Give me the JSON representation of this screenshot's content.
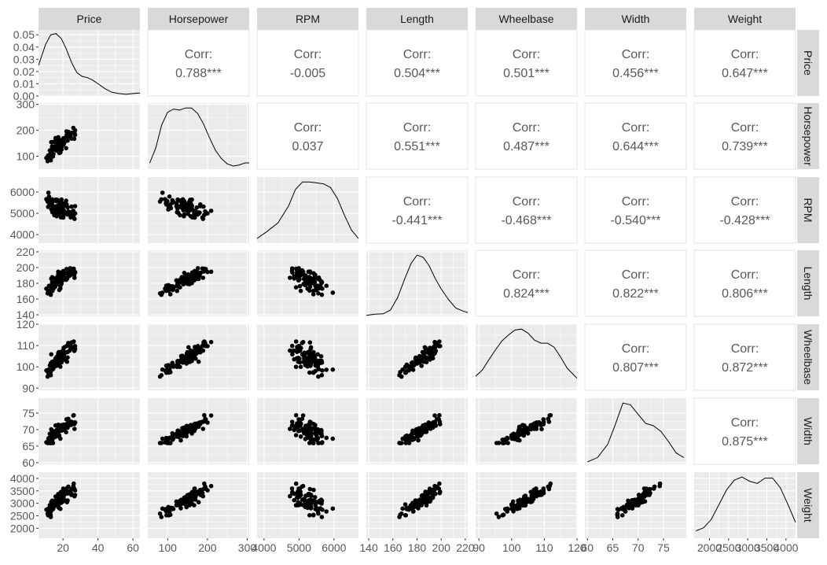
{
  "chart_data": {
    "type": "scatter-matrix",
    "variables": [
      "Price",
      "Horsepower",
      "RPM",
      "Length",
      "Wheelbase",
      "Width",
      "Weight"
    ],
    "correlations": [
      {
        "row": "Price",
        "col": "Horsepower",
        "label": "Corr:",
        "value": "0.788***"
      },
      {
        "row": "Price",
        "col": "RPM",
        "label": "Corr:",
        "value": "-0.005"
      },
      {
        "row": "Price",
        "col": "Length",
        "label": "Corr:",
        "value": "0.504***"
      },
      {
        "row": "Price",
        "col": "Wheelbase",
        "label": "Corr:",
        "value": "0.501***"
      },
      {
        "row": "Price",
        "col": "Width",
        "label": "Corr:",
        "value": "0.456***"
      },
      {
        "row": "Price",
        "col": "Weight",
        "label": "Corr:",
        "value": "0.647***"
      },
      {
        "row": "Horsepower",
        "col": "RPM",
        "label": "Corr:",
        "value": "0.037"
      },
      {
        "row": "Horsepower",
        "col": "Length",
        "label": "Corr:",
        "value": "0.551***"
      },
      {
        "row": "Horsepower",
        "col": "Wheelbase",
        "label": "Corr:",
        "value": "0.487***"
      },
      {
        "row": "Horsepower",
        "col": "Width",
        "label": "Corr:",
        "value": "0.644***"
      },
      {
        "row": "Horsepower",
        "col": "Weight",
        "label": "Corr:",
        "value": "0.739***"
      },
      {
        "row": "RPM",
        "col": "Length",
        "label": "Corr:",
        "value": "-0.441***"
      },
      {
        "row": "RPM",
        "col": "Wheelbase",
        "label": "Corr:",
        "value": "-0.468***"
      },
      {
        "row": "RPM",
        "col": "Width",
        "label": "Corr:",
        "value": "-0.540***"
      },
      {
        "row": "RPM",
        "col": "Weight",
        "label": "Corr:",
        "value": "-0.428***"
      },
      {
        "row": "Length",
        "col": "Wheelbase",
        "label": "Corr:",
        "value": "0.824***"
      },
      {
        "row": "Length",
        "col": "Width",
        "label": "Corr:",
        "value": "0.822***"
      },
      {
        "row": "Length",
        "col": "Weight",
        "label": "Corr:",
        "value": "0.806***"
      },
      {
        "row": "Wheelbase",
        "col": "Width",
        "label": "Corr:",
        "value": "0.807***"
      },
      {
        "row": "Wheelbase",
        "col": "Weight",
        "label": "Corr:",
        "value": "0.872***"
      },
      {
        "row": "Width",
        "col": "Weight",
        "label": "Corr:",
        "value": "0.875***"
      }
    ],
    "x_axes": [
      {
        "variable": "Price",
        "range": [
          6,
          64
        ],
        "ticks": [
          20,
          40,
          60
        ]
      },
      {
        "variable": "Horsepower",
        "range": [
          50,
          305
        ],
        "ticks": [
          100,
          200,
          300
        ]
      },
      {
        "variable": "RPM",
        "range": [
          3800,
          6700
        ],
        "ticks": [
          4000,
          5000,
          6000
        ]
      },
      {
        "variable": "Length",
        "range": [
          138,
          222
        ],
        "ticks": [
          140,
          160,
          180,
          200,
          220
        ]
      },
      {
        "variable": "Wheelbase",
        "range": [
          89,
          120
        ],
        "ticks": [
          90,
          100,
          110,
          120
        ]
      },
      {
        "variable": "Width",
        "range": [
          59.5,
          79.5
        ],
        "ticks": [
          60,
          65,
          70,
          75
        ]
      },
      {
        "variable": "Weight",
        "range": [
          1600,
          4250
        ],
        "ticks": [
          2000,
          2500,
          3000,
          3500,
          4000
        ]
      }
    ],
    "y_axes": [
      {
        "variable": "Price",
        "range": [
          0,
          0.054
        ],
        "ticks": [
          0.0,
          0.01,
          0.02,
          0.03,
          0.04,
          0.05
        ],
        "tick_labels": [
          "0.00",
          "0.01",
          "0.02",
          "0.03",
          "0.04",
          "0.05"
        ]
      },
      {
        "variable": "Horsepower",
        "range": [
          50,
          305
        ],
        "ticks": [
          100,
          200,
          300
        ]
      },
      {
        "variable": "RPM",
        "range": [
          3600,
          6700
        ],
        "ticks": [
          4000,
          5000,
          6000
        ]
      },
      {
        "variable": "Length",
        "range": [
          138,
          222
        ],
        "ticks": [
          140,
          160,
          180,
          200,
          220
        ]
      },
      {
        "variable": "Wheelbase",
        "range": [
          89,
          120
        ],
        "ticks": [
          90,
          100,
          110,
          120
        ]
      },
      {
        "variable": "Width",
        "range": [
          59.5,
          79.5
        ],
        "ticks": [
          60,
          65,
          70,
          75
        ]
      },
      {
        "variable": "Weight",
        "range": [
          1600,
          4250
        ],
        "ticks": [
          2000,
          2500,
          3000,
          3500,
          4000
        ]
      }
    ],
    "densities": [
      {
        "variable": "Price",
        "x": [
          6,
          10,
          13,
          16,
          19,
          22,
          25,
          28,
          31,
          34,
          37,
          40,
          44,
          48,
          52,
          56,
          60,
          64
        ],
        "y": [
          0.025,
          0.042,
          0.05,
          0.051,
          0.047,
          0.038,
          0.027,
          0.019,
          0.016,
          0.015,
          0.013,
          0.01,
          0.006,
          0.003,
          0.002,
          0.0015,
          0.002,
          0.0025
        ]
      },
      {
        "variable": "Horsepower",
        "x": [
          55,
          70,
          85,
          100,
          115,
          130,
          145,
          160,
          175,
          190,
          205,
          220,
          235,
          250,
          265,
          280,
          295,
          305
        ],
        "y": [
          0.0006,
          0.002,
          0.0042,
          0.0054,
          0.0057,
          0.0056,
          0.0058,
          0.0058,
          0.0053,
          0.0043,
          0.003,
          0.0018,
          0.001,
          0.0005,
          0.0003,
          0.0004,
          0.0006,
          0.0006
        ]
      },
      {
        "variable": "RPM",
        "x": [
          3800,
          4100,
          4400,
          4700,
          4900,
          5100,
          5300,
          5500,
          5700,
          5900,
          6100,
          6300,
          6500,
          6700
        ],
        "y": [
          5e-05,
          0.00013,
          0.00022,
          0.0004,
          0.00058,
          0.00066,
          0.00066,
          0.00065,
          0.00064,
          0.0006,
          0.00048,
          0.0003,
          0.00014,
          5e-05
        ]
      },
      {
        "variable": "Length",
        "x": [
          138,
          145,
          152,
          158,
          164,
          170,
          175,
          180,
          185,
          190,
          195,
          200,
          206,
          212,
          218,
          222
        ],
        "y": [
          0.0005,
          0.001,
          0.0012,
          0.003,
          0.009,
          0.018,
          0.025,
          0.029,
          0.028,
          0.024,
          0.018,
          0.013,
          0.008,
          0.004,
          0.0025,
          0.0018
        ]
      },
      {
        "variable": "Wheelbase",
        "x": [
          89,
          91,
          93,
          95,
          97,
          99,
          101,
          103,
          105,
          107,
          109,
          111,
          113,
          115,
          117,
          120
        ],
        "y": [
          0.014,
          0.02,
          0.03,
          0.04,
          0.049,
          0.055,
          0.06,
          0.061,
          0.057,
          0.05,
          0.047,
          0.047,
          0.043,
          0.033,
          0.022,
          0.012
        ]
      },
      {
        "variable": "Width",
        "x": [
          60,
          62,
          64,
          65.5,
          67,
          68.5,
          70,
          71.5,
          73,
          74.5,
          76,
          77.5,
          79
        ],
        "y": [
          0.004,
          0.012,
          0.035,
          0.07,
          0.108,
          0.105,
          0.088,
          0.072,
          0.068,
          0.058,
          0.04,
          0.02,
          0.012
        ]
      },
      {
        "variable": "Weight",
        "x": [
          1650,
          1850,
          2050,
          2250,
          2450,
          2650,
          2850,
          3050,
          3250,
          3450,
          3650,
          3850,
          4050,
          4250
        ],
        "y": [
          7e-05,
          0.0001,
          0.00018,
          0.00032,
          0.00046,
          0.00055,
          0.00058,
          0.00054,
          0.00052,
          0.00057,
          0.00057,
          0.00048,
          0.00032,
          0.00015
        ]
      }
    ],
    "scatter_seed": 7,
    "scatter_n": 93,
    "strip_color": "#d9d9d9",
    "panel_background": "#ebebeb",
    "grid_color": "#ffffff",
    "point_color": "#000000",
    "text_color": "#595959"
  }
}
